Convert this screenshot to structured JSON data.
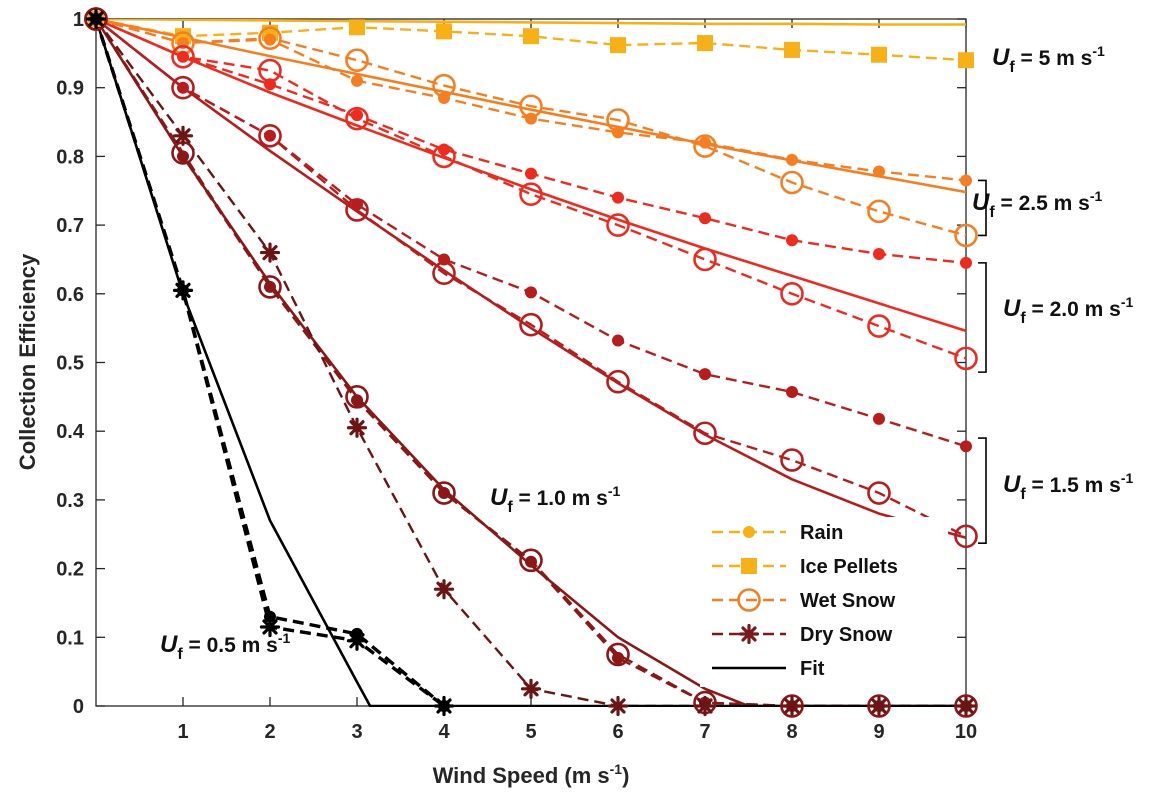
{
  "chart_data": {
    "type": "line",
    "xlabel": "Wind Speed (m s",
    "xlabel_sup": "-1",
    "xlabel_end": ")",
    "ylabel": "Collection Efficiency",
    "xlim": [
      0,
      10
    ],
    "ylim": [
      0,
      1
    ],
    "x_ticks": [
      1,
      2,
      3,
      4,
      5,
      6,
      7,
      8,
      9,
      10
    ],
    "y_ticks": [
      0,
      0.1,
      0.2,
      0.3,
      0.4,
      0.5,
      0.6,
      0.7,
      0.8,
      0.9,
      1
    ],
    "y_tick_labels": [
      "0",
      "0.1",
      "0.2",
      "0.3",
      "0.4",
      "0.5",
      "0.6",
      "0.7",
      "0.8",
      "0.9",
      "1"
    ],
    "grid": false,
    "legend_position": "lower-right",
    "colors": {
      "uf5": "#f7b116",
      "uf25": "#f57f20",
      "uf20": "#ef2a1e",
      "uf15": "#b91c1c",
      "uf10": "#8b1717",
      "uf05": "#000000",
      "dry_snow": "#6b1414",
      "legend_dry": "#7a1a1a",
      "brace": "#000000",
      "axis": "#262626"
    },
    "legend": [
      {
        "label": "Rain",
        "marker": "dot",
        "dashed": true,
        "color_key": "uf5"
      },
      {
        "label": "Ice Pellets",
        "marker": "square",
        "dashed": true,
        "color_key": "uf5"
      },
      {
        "label": "Wet Snow",
        "marker": "circle",
        "dashed": true,
        "color_key": "uf25"
      },
      {
        "label": "Dry Snow",
        "marker": "star",
        "dashed": true,
        "color_key": "legend_dry"
      },
      {
        "label": "Fit",
        "marker": "none",
        "dashed": false,
        "color_key": "uf05"
      }
    ],
    "annotations": [
      {
        "prefix": "U",
        "sub": "f",
        "text": " = 5 m s",
        "sup": "-1"
      },
      {
        "prefix": "U",
        "sub": "f",
        "text": " = 2.5 m s",
        "sup": "-1"
      },
      {
        "prefix": "U",
        "sub": "f",
        "text": " = 2.0 m s",
        "sup": "-1"
      },
      {
        "prefix": "U",
        "sub": "f",
        "text": " = 1.5 m s",
        "sup": "-1"
      },
      {
        "prefix": "U",
        "sub": "f",
        "text": " = 1.0 m s",
        "sup": "-1"
      },
      {
        "prefix": "U",
        "sub": "f",
        "text": " = 0.5 m s",
        "sup": "-1"
      }
    ],
    "series": [
      {
        "group": "uf5",
        "kind": "fit",
        "color_key": "uf5",
        "x": [
          0,
          1,
          2,
          3,
          4,
          5,
          6,
          7,
          8,
          9,
          10
        ],
        "y": [
          1,
          0.999,
          0.998,
          0.997,
          0.996,
          0.995,
          0.994,
          0.993,
          0.993,
          0.992,
          0.992
        ]
      },
      {
        "group": "uf5",
        "kind": "ice_pellets",
        "color_key": "uf5",
        "marker": "square",
        "x": [
          0,
          1,
          2,
          3,
          4,
          5,
          6,
          7,
          8,
          9,
          10
        ],
        "y": [
          1,
          0.975,
          0.98,
          0.988,
          0.982,
          0.975,
          0.962,
          0.965,
          0.955,
          0.948,
          0.94
        ]
      },
      {
        "group": "uf25",
        "kind": "fit",
        "color_key": "uf25",
        "x": [
          0,
          1,
          2,
          3,
          4,
          5,
          6,
          7,
          8,
          9,
          10
        ],
        "y": [
          1,
          0.973,
          0.946,
          0.92,
          0.894,
          0.868,
          0.843,
          0.818,
          0.794,
          0.771,
          0.748
        ]
      },
      {
        "group": "uf25",
        "kind": "rain",
        "color_key": "uf25",
        "marker": "dot",
        "x": [
          0,
          1,
          2,
          3,
          4,
          5,
          6,
          7,
          8,
          9,
          10
        ],
        "y": [
          1,
          0.965,
          0.97,
          0.91,
          0.885,
          0.855,
          0.835,
          0.82,
          0.795,
          0.778,
          0.765
        ]
      },
      {
        "group": "uf25",
        "kind": "wet_snow",
        "color_key": "uf25",
        "marker": "circle",
        "x": [
          0,
          1,
          2,
          3,
          4,
          5,
          6,
          7,
          8,
          9,
          10
        ],
        "y": [
          1,
          0.965,
          0.972,
          0.94,
          0.903,
          0.873,
          0.853,
          0.815,
          0.762,
          0.72,
          0.685
        ]
      },
      {
        "group": "uf20",
        "kind": "fit",
        "color_key": "uf20",
        "x": [
          0,
          1,
          2,
          3,
          4,
          5,
          6,
          7,
          8,
          9,
          10
        ],
        "y": [
          1,
          0.945,
          0.893,
          0.845,
          0.798,
          0.752,
          0.708,
          0.666,
          0.626,
          0.586,
          0.546
        ]
      },
      {
        "group": "uf20",
        "kind": "rain",
        "color_key": "uf20",
        "marker": "dot",
        "x": [
          0,
          1,
          2,
          3,
          4,
          5,
          6,
          7,
          8,
          9,
          10
        ],
        "y": [
          1,
          0.945,
          0.905,
          0.86,
          0.81,
          0.775,
          0.74,
          0.71,
          0.678,
          0.658,
          0.645
        ]
      },
      {
        "group": "uf20",
        "kind": "wet_snow",
        "color_key": "uf20",
        "marker": "circle",
        "x": [
          0,
          1,
          2,
          3,
          4,
          5,
          6,
          7,
          8,
          9,
          10
        ],
        "y": [
          1,
          0.945,
          0.925,
          0.855,
          0.8,
          0.745,
          0.7,
          0.65,
          0.6,
          0.553,
          0.506
        ]
      },
      {
        "group": "uf15",
        "kind": "fit",
        "color_key": "uf15",
        "x": [
          0,
          1,
          2,
          3,
          4,
          5,
          6,
          7,
          8,
          9,
          10
        ],
        "y": [
          1,
          0.9,
          0.808,
          0.72,
          0.634,
          0.55,
          0.47,
          0.395,
          0.33,
          0.28,
          0.245
        ]
      },
      {
        "group": "uf15",
        "kind": "rain",
        "color_key": "uf15",
        "marker": "dot",
        "x": [
          0,
          1,
          2,
          3,
          4,
          5,
          6,
          7,
          8,
          9,
          10
        ],
        "y": [
          1,
          0.9,
          0.83,
          0.73,
          0.65,
          0.602,
          0.532,
          0.483,
          0.457,
          0.418,
          0.378
        ]
      },
      {
        "group": "uf15",
        "kind": "wet_snow",
        "color_key": "uf15",
        "marker": "circle",
        "x": [
          0,
          1,
          2,
          3,
          4,
          5,
          6,
          7,
          8,
          9,
          10
        ],
        "y": [
          1,
          0.9,
          0.83,
          0.722,
          0.63,
          0.555,
          0.472,
          0.397,
          0.358,
          0.31,
          0.247
        ]
      },
      {
        "group": "uf10",
        "kind": "fit",
        "color_key": "uf10",
        "x": [
          0,
          1,
          2,
          3,
          4,
          5,
          6,
          7,
          7.5,
          8,
          9,
          10
        ],
        "y": [
          1,
          0.8,
          0.615,
          0.45,
          0.315,
          0.205,
          0.1,
          0.025,
          0,
          0,
          0,
          0
        ]
      },
      {
        "group": "uf10",
        "kind": "rain",
        "color_key": "uf10",
        "marker": "dot",
        "x": [
          0,
          1,
          2,
          3,
          4,
          5,
          6,
          7,
          8,
          9,
          10
        ],
        "y": [
          1,
          0.8,
          0.61,
          0.445,
          0.31,
          0.21,
          0.07,
          0.005,
          0,
          0,
          0
        ]
      },
      {
        "group": "uf10",
        "kind": "wet_snow",
        "color_key": "uf10",
        "marker": "circle",
        "x": [
          0,
          1,
          2,
          3,
          4,
          5,
          6,
          7,
          8,
          9,
          10
        ],
        "y": [
          1,
          0.805,
          0.61,
          0.45,
          0.31,
          0.212,
          0.075,
          0.005,
          0,
          0,
          0
        ]
      },
      {
        "group": "uf10",
        "kind": "dry_snow",
        "color_key": "dry_snow",
        "marker": "star",
        "x": [
          0,
          1,
          2,
          3,
          4,
          5,
          6,
          7,
          8,
          9,
          10
        ],
        "y": [
          1,
          0.83,
          0.66,
          0.405,
          0.17,
          0.025,
          0,
          0,
          0,
          0,
          0
        ]
      },
      {
        "group": "uf05",
        "kind": "fit",
        "color_key": "uf05",
        "x": [
          0,
          1,
          2,
          3,
          3.15,
          4,
          5,
          6,
          7,
          8,
          9,
          10
        ],
        "y": [
          1,
          0.6,
          0.27,
          0.035,
          0,
          0,
          0,
          0,
          0,
          0,
          0,
          0
        ]
      },
      {
        "group": "uf05",
        "kind": "rain",
        "color_key": "uf05",
        "marker": "dot",
        "x": [
          0,
          1,
          2,
          3,
          4
        ],
        "y": [
          1,
          0.605,
          0.13,
          0.105,
          0
        ]
      },
      {
        "group": "uf05",
        "kind": "dry_snow",
        "color_key": "uf05",
        "marker": "star",
        "x": [
          0,
          1,
          2,
          3,
          4
        ],
        "y": [
          1,
          0.605,
          0.115,
          0.095,
          0
        ]
      }
    ]
  }
}
